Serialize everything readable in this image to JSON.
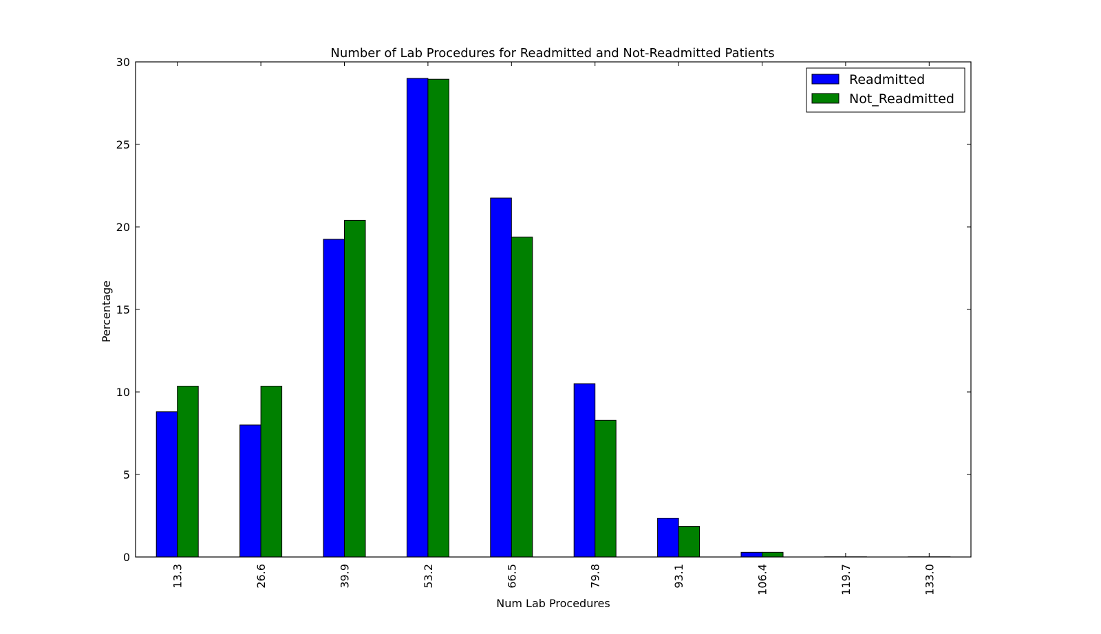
{
  "chart_data": {
    "type": "bar",
    "title": "Number of Lab Procedures for Readmitted and Not-Readmitted Patients",
    "xlabel": "Num Lab Procedures",
    "ylabel": "Percentage",
    "ylim": [
      0,
      30
    ],
    "yticks": [
      "0",
      "5",
      "10",
      "15",
      "20",
      "25",
      "30"
    ],
    "categories": [
      "13.3",
      "26.6",
      "39.9",
      "53.2",
      "66.5",
      "79.8",
      "93.1",
      "106.4",
      "119.7",
      "133.0"
    ],
    "series": [
      {
        "name": "Readmitted",
        "color": "#0000ff",
        "values": [
          8.8,
          8.0,
          19.25,
          29.0,
          21.75,
          10.5,
          2.35,
          0.28,
          0.01,
          0.01
        ]
      },
      {
        "name": "Not_Readmitted",
        "color": "#008000",
        "values": [
          10.35,
          10.35,
          20.4,
          28.95,
          19.38,
          8.28,
          1.85,
          0.28,
          0.01,
          0.01
        ]
      }
    ],
    "grid": false,
    "legend_position": "top-right"
  }
}
